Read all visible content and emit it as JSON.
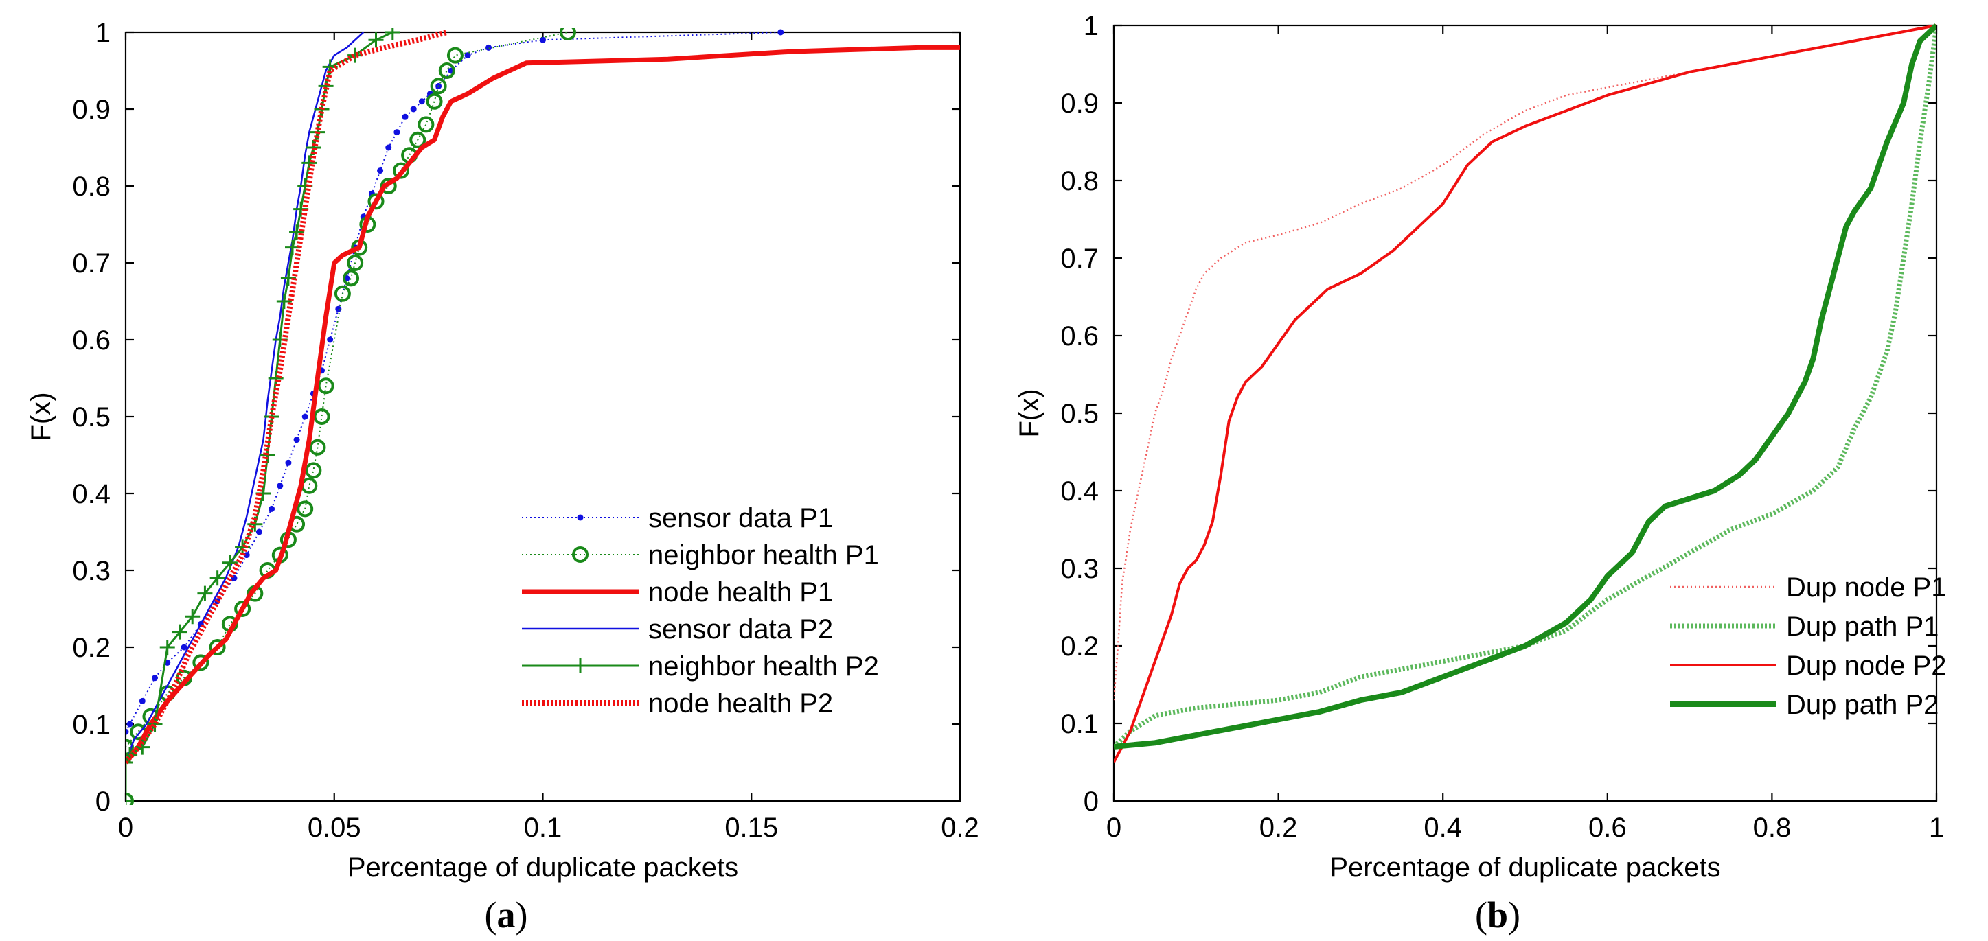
{
  "colors": {
    "blue": "#1010e0",
    "green": "#1a8a1a",
    "red": "#f01010",
    "light_red": "#f06060",
    "light_green": "#5cb85c"
  },
  "chart_data": [
    {
      "type": "line",
      "panel_label": "(a)",
      "panel_letter": "a",
      "xlabel": "Percentage of duplicate packets",
      "ylabel": "F(x)",
      "xlim": [
        0,
        0.2
      ],
      "ylim": [
        0,
        1
      ],
      "xticks": [
        0,
        0.05,
        0.1,
        0.15,
        0.2
      ],
      "xtick_labels": [
        "0",
        "0.05",
        "0.1",
        "0.15",
        "0.2"
      ],
      "yticks": [
        0,
        0.1,
        0.2,
        0.3,
        0.4,
        0.5,
        0.6,
        0.7,
        0.8,
        0.9,
        1
      ],
      "ytick_labels": [
        "0",
        "0.1",
        "0.2",
        "0.3",
        "0.4",
        "0.5",
        "0.6",
        "0.7",
        "0.8",
        "0.9",
        "1"
      ],
      "grid": false,
      "legend_position": "bottom-right",
      "series": [
        {
          "name": "sensor data P1",
          "color": "blue",
          "style": "dotted",
          "marker": "dot",
          "width": 2,
          "x": [
            0,
            0.001,
            0.004,
            0.007,
            0.01,
            0.014,
            0.018,
            0.022,
            0.026,
            0.029,
            0.032,
            0.035,
            0.037,
            0.039,
            0.041,
            0.043,
            0.045,
            0.047,
            0.049,
            0.051,
            0.053,
            0.055,
            0.057,
            0.059,
            0.061,
            0.063,
            0.065,
            0.067,
            0.069,
            0.071,
            0.073,
            0.075,
            0.078,
            0.082,
            0.087,
            0.1,
            0.157
          ],
          "y": [
            0.09,
            0.1,
            0.13,
            0.16,
            0.18,
            0.2,
            0.23,
            0.26,
            0.29,
            0.32,
            0.35,
            0.38,
            0.41,
            0.44,
            0.47,
            0.5,
            0.53,
            0.56,
            0.6,
            0.64,
            0.68,
            0.72,
            0.76,
            0.79,
            0.82,
            0.85,
            0.87,
            0.89,
            0.9,
            0.91,
            0.92,
            0.93,
            0.95,
            0.97,
            0.98,
            0.99,
            1.0
          ]
        },
        {
          "name": "neighbor health P1",
          "color": "green",
          "style": "dotted",
          "marker": "circle",
          "width": 2,
          "x": [
            0,
            0,
            0.003,
            0.006,
            0.01,
            0.014,
            0.018,
            0.022,
            0.025,
            0.028,
            0.031,
            0.034,
            0.037,
            0.039,
            0.041,
            0.043,
            0.044,
            0.045,
            0.046,
            0.047,
            0.048,
            0.052,
            0.054,
            0.055,
            0.056,
            0.058,
            0.06,
            0.063,
            0.066,
            0.068,
            0.07,
            0.072,
            0.074,
            0.075,
            0.077,
            0.079,
            0.106
          ],
          "y": [
            0,
            0.07,
            0.09,
            0.11,
            0.14,
            0.16,
            0.18,
            0.2,
            0.23,
            0.25,
            0.27,
            0.3,
            0.32,
            0.34,
            0.36,
            0.38,
            0.41,
            0.43,
            0.46,
            0.5,
            0.54,
            0.66,
            0.68,
            0.7,
            0.72,
            0.75,
            0.78,
            0.8,
            0.82,
            0.84,
            0.86,
            0.88,
            0.91,
            0.93,
            0.95,
            0.97,
            1.0
          ]
        },
        {
          "name": "node health P1",
          "color": "red",
          "style": "solid",
          "marker": "none",
          "width": 7,
          "x": [
            0,
            0.003,
            0.006,
            0.01,
            0.015,
            0.02,
            0.024,
            0.027,
            0.03,
            0.033,
            0.036,
            0.038,
            0.04,
            0.042,
            0.044,
            0.046,
            0.048,
            0.05,
            0.052,
            0.056,
            0.058,
            0.06,
            0.062,
            0.065,
            0.068,
            0.071,
            0.074,
            0.076,
            0.078,
            0.082,
            0.088,
            0.096,
            0.13,
            0.16,
            0.19,
            0.2
          ],
          "y": [
            0.05,
            0.07,
            0.1,
            0.13,
            0.16,
            0.19,
            0.21,
            0.24,
            0.27,
            0.29,
            0.3,
            0.33,
            0.37,
            0.41,
            0.47,
            0.55,
            0.63,
            0.7,
            0.71,
            0.72,
            0.76,
            0.78,
            0.8,
            0.81,
            0.83,
            0.85,
            0.86,
            0.89,
            0.91,
            0.92,
            0.94,
            0.96,
            0.965,
            0.975,
            0.98,
            0.98
          ]
        },
        {
          "name": "sensor data P2",
          "color": "blue",
          "style": "solid",
          "marker": "none",
          "width": 2.5,
          "x": [
            0,
            0.002,
            0.005,
            0.008,
            0.012,
            0.016,
            0.02,
            0.024,
            0.027,
            0.029,
            0.031,
            0.033,
            0.034,
            0.035,
            0.036,
            0.037,
            0.038,
            0.039,
            0.04,
            0.041,
            0.042,
            0.043,
            0.044,
            0.045,
            0.046,
            0.047,
            0.048,
            0.05,
            0.053,
            0.055,
            0.057
          ],
          "y": [
            0.05,
            0.08,
            0.1,
            0.13,
            0.17,
            0.21,
            0.25,
            0.29,
            0.33,
            0.37,
            0.42,
            0.47,
            0.52,
            0.56,
            0.6,
            0.63,
            0.67,
            0.7,
            0.73,
            0.77,
            0.8,
            0.84,
            0.87,
            0.89,
            0.91,
            0.93,
            0.95,
            0.97,
            0.98,
            0.99,
            1.0
          ]
        },
        {
          "name": "neighbor health P2",
          "color": "green",
          "style": "solid",
          "marker": "plus",
          "width": 3,
          "x": [
            0,
            0,
            0.001,
            0.004,
            0.007,
            0.01,
            0.013,
            0.016,
            0.019,
            0.022,
            0.025,
            0.028,
            0.031,
            0.033,
            0.034,
            0.035,
            0.036,
            0.037,
            0.038,
            0.039,
            0.04,
            0.041,
            0.042,
            0.043,
            0.044,
            0.045,
            0.046,
            0.047,
            0.048,
            0.049,
            0.055,
            0.06,
            0.064
          ],
          "y": [
            0,
            0.05,
            0.06,
            0.07,
            0.1,
            0.2,
            0.22,
            0.24,
            0.27,
            0.29,
            0.31,
            0.33,
            0.36,
            0.4,
            0.45,
            0.5,
            0.55,
            0.6,
            0.65,
            0.68,
            0.72,
            0.74,
            0.77,
            0.8,
            0.83,
            0.85,
            0.87,
            0.9,
            0.93,
            0.955,
            0.97,
            0.99,
            1.0
          ]
        },
        {
          "name": "node health P2",
          "color": "red",
          "style": "dotted",
          "marker": "none",
          "width": 8,
          "x": [
            0,
            0.003,
            0.007,
            0.011,
            0.015,
            0.02,
            0.024,
            0.028,
            0.031,
            0.033,
            0.035,
            0.037,
            0.039,
            0.041,
            0.043,
            0.045,
            0.047,
            0.049,
            0.055,
            0.062,
            0.07,
            0.077
          ],
          "y": [
            0.05,
            0.07,
            0.1,
            0.14,
            0.19,
            0.24,
            0.28,
            0.32,
            0.37,
            0.43,
            0.5,
            0.56,
            0.63,
            0.7,
            0.77,
            0.84,
            0.9,
            0.95,
            0.97,
            0.98,
            0.99,
            1.0
          ]
        }
      ]
    },
    {
      "type": "line",
      "panel_label": "(b)",
      "panel_letter": "b",
      "xlabel": "Percentage of duplicate packets",
      "ylabel": "F(x)",
      "xlim": [
        0,
        1
      ],
      "ylim": [
        0,
        1
      ],
      "xticks": [
        0,
        0.2,
        0.4,
        0.6,
        0.8,
        1
      ],
      "xtick_labels": [
        "0",
        "0.2",
        "0.4",
        "0.6",
        "0.8",
        "1"
      ],
      "yticks": [
        0,
        0.1,
        0.2,
        0.3,
        0.4,
        0.5,
        0.6,
        0.7,
        0.8,
        0.9,
        1
      ],
      "ytick_labels": [
        "0",
        "0.1",
        "0.2",
        "0.3",
        "0.4",
        "0.5",
        "0.6",
        "0.7",
        "0.8",
        "0.9",
        "1"
      ],
      "grid": false,
      "legend_position": "bottom-right",
      "series": [
        {
          "name": "Dup node P1",
          "color": "light_red",
          "style": "dotted",
          "marker": "none",
          "width": 2.5,
          "x": [
            0,
            0.005,
            0.01,
            0.02,
            0.03,
            0.04,
            0.05,
            0.06,
            0.07,
            0.08,
            0.09,
            0.1,
            0.11,
            0.13,
            0.16,
            0.2,
            0.25,
            0.3,
            0.35,
            0.4,
            0.45,
            0.5,
            0.55,
            0.6,
            0.7,
            0.8,
            0.9,
            1.0
          ],
          "y": [
            0.13,
            0.2,
            0.28,
            0.35,
            0.4,
            0.45,
            0.5,
            0.53,
            0.57,
            0.6,
            0.63,
            0.66,
            0.68,
            0.7,
            0.72,
            0.73,
            0.745,
            0.77,
            0.79,
            0.82,
            0.86,
            0.89,
            0.91,
            0.92,
            0.94,
            0.96,
            0.98,
            1.0
          ]
        },
        {
          "name": "Dup path P1",
          "color": "light_green",
          "style": "dotted",
          "marker": "none",
          "width": 7,
          "x": [
            0,
            0.02,
            0.05,
            0.1,
            0.15,
            0.2,
            0.25,
            0.3,
            0.35,
            0.4,
            0.45,
            0.5,
            0.55,
            0.6,
            0.65,
            0.7,
            0.75,
            0.8,
            0.85,
            0.88,
            0.9,
            0.92,
            0.94,
            0.95,
            0.96,
            0.97,
            0.98,
            0.99,
            1.0
          ],
          "y": [
            0.07,
            0.09,
            0.11,
            0.12,
            0.125,
            0.13,
            0.14,
            0.16,
            0.17,
            0.18,
            0.19,
            0.2,
            0.22,
            0.26,
            0.29,
            0.32,
            0.35,
            0.37,
            0.4,
            0.43,
            0.48,
            0.52,
            0.58,
            0.63,
            0.7,
            0.77,
            0.85,
            0.92,
            1.0
          ]
        },
        {
          "name": "Dup node P2",
          "color": "red",
          "style": "solid",
          "marker": "none",
          "width": 4,
          "x": [
            0,
            0.01,
            0.02,
            0.03,
            0.04,
            0.05,
            0.06,
            0.07,
            0.08,
            0.09,
            0.1,
            0.11,
            0.12,
            0.13,
            0.14,
            0.15,
            0.16,
            0.18,
            0.2,
            0.22,
            0.26,
            0.3,
            0.34,
            0.36,
            0.4,
            0.43,
            0.46,
            0.5,
            0.6,
            0.7,
            0.8,
            0.9,
            1.0
          ],
          "y": [
            0.05,
            0.07,
            0.09,
            0.12,
            0.15,
            0.18,
            0.21,
            0.24,
            0.28,
            0.3,
            0.31,
            0.33,
            0.36,
            0.42,
            0.49,
            0.52,
            0.54,
            0.56,
            0.59,
            0.62,
            0.66,
            0.68,
            0.71,
            0.73,
            0.77,
            0.82,
            0.85,
            0.87,
            0.91,
            0.94,
            0.96,
            0.98,
            1.0
          ]
        },
        {
          "name": "Dup path P2",
          "color": "green",
          "style": "solid",
          "marker": "none",
          "width": 8,
          "x": [
            0,
            0.05,
            0.1,
            0.15,
            0.2,
            0.25,
            0.3,
            0.35,
            0.4,
            0.45,
            0.5,
            0.55,
            0.58,
            0.6,
            0.63,
            0.65,
            0.67,
            0.7,
            0.73,
            0.76,
            0.78,
            0.8,
            0.82,
            0.83,
            0.84,
            0.85,
            0.86,
            0.87,
            0.88,
            0.89,
            0.9,
            0.92,
            0.94,
            0.96,
            0.97,
            0.98,
            1.0
          ],
          "y": [
            0.07,
            0.075,
            0.085,
            0.095,
            0.105,
            0.115,
            0.13,
            0.14,
            0.16,
            0.18,
            0.2,
            0.23,
            0.26,
            0.29,
            0.32,
            0.36,
            0.38,
            0.39,
            0.4,
            0.42,
            0.44,
            0.47,
            0.5,
            0.52,
            0.54,
            0.57,
            0.62,
            0.66,
            0.7,
            0.74,
            0.76,
            0.79,
            0.85,
            0.9,
            0.95,
            0.98,
            1.0
          ]
        }
      ]
    }
  ]
}
